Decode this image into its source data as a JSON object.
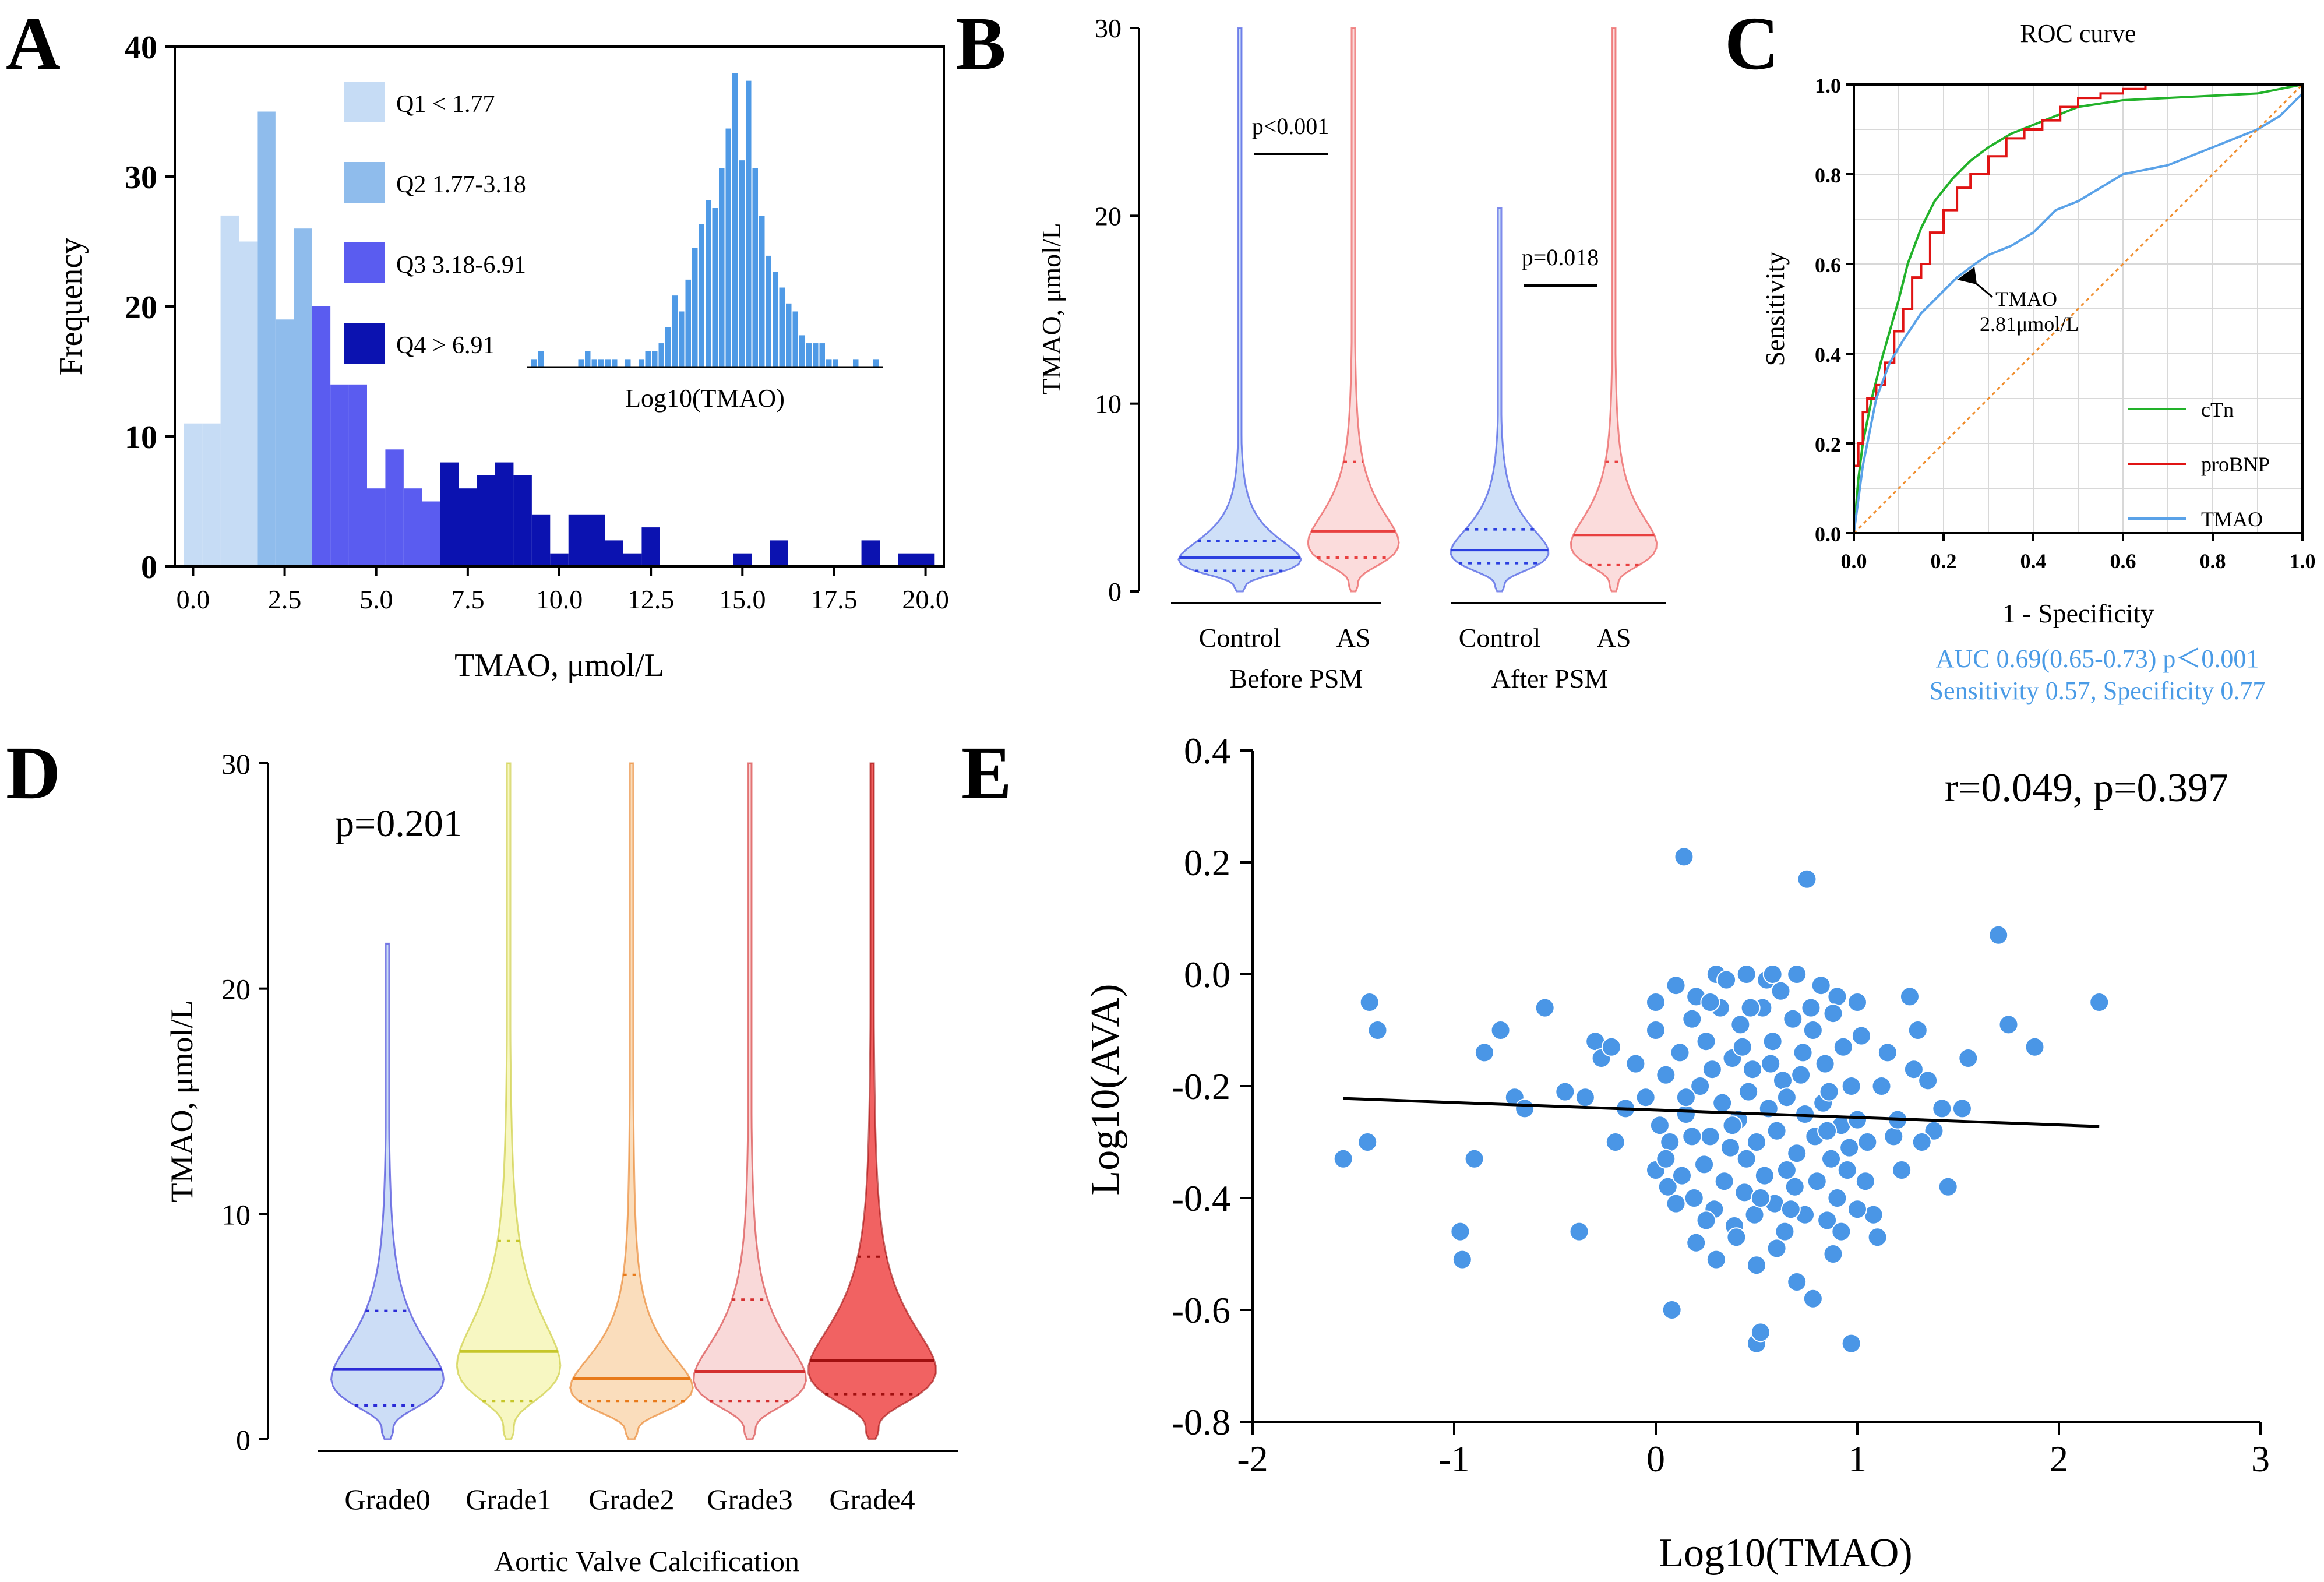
{
  "colors": {
    "q1": "#c6dcf5",
    "q2": "#8fbcec",
    "q3": "#5a5cf0",
    "q4": "#0b12b0",
    "inset": "#4f9ae6",
    "ctn": "#22b22a",
    "probnp": "#e01414",
    "tmao": "#5aa2e8",
    "blue_text": "#4a9be6",
    "scatter": "#4a96e6"
  },
  "panels": {
    "a": "A",
    "b": "B",
    "c": "C",
    "d": "D",
    "e": "E"
  },
  "chart_data": [
    {
      "id": "A",
      "type": "bar",
      "title": "",
      "xlabel": "TMAO, μmol/L",
      "ylabel": "Frequency",
      "xlim": [
        -0.5,
        20.5
      ],
      "ylim": [
        0,
        40
      ],
      "xticks": [
        "0.0",
        "2.5",
        "5.0",
        "7.5",
        "10.0",
        "12.5",
        "15.0",
        "17.5",
        "20.0"
      ],
      "yticks": [
        "0",
        "10",
        "20",
        "30",
        "40"
      ],
      "bin_width": 0.5,
      "bins": [
        {
          "x": 0.0,
          "v": 11,
          "q": 1
        },
        {
          "x": 0.5,
          "v": 11,
          "q": 1
        },
        {
          "x": 1.0,
          "v": 27,
          "q": 1
        },
        {
          "x": 1.5,
          "v": 25,
          "q": 1
        },
        {
          "x": 2.0,
          "v": 35,
          "q": 2
        },
        {
          "x": 2.5,
          "v": 19,
          "q": 2
        },
        {
          "x": 3.0,
          "v": 26,
          "q": 2
        },
        {
          "x": 3.5,
          "v": 20,
          "q": 3
        },
        {
          "x": 4.0,
          "v": 14,
          "q": 3
        },
        {
          "x": 4.5,
          "v": 14,
          "q": 3
        },
        {
          "x": 5.0,
          "v": 6,
          "q": 3
        },
        {
          "x": 5.5,
          "v": 9,
          "q": 3
        },
        {
          "x": 6.0,
          "v": 6,
          "q": 3
        },
        {
          "x": 6.5,
          "v": 5,
          "q": 3
        },
        {
          "x": 7.0,
          "v": 8,
          "q": 4
        },
        {
          "x": 7.5,
          "v": 6,
          "q": 4
        },
        {
          "x": 8.0,
          "v": 7,
          "q": 4
        },
        {
          "x": 8.5,
          "v": 8,
          "q": 4
        },
        {
          "x": 9.0,
          "v": 7,
          "q": 4
        },
        {
          "x": 9.5,
          "v": 4,
          "q": 4
        },
        {
          "x": 10.0,
          "v": 1,
          "q": 4
        },
        {
          "x": 10.5,
          "v": 4,
          "q": 4
        },
        {
          "x": 11.0,
          "v": 4,
          "q": 4
        },
        {
          "x": 11.5,
          "v": 2,
          "q": 4
        },
        {
          "x": 12.0,
          "v": 1,
          "q": 4
        },
        {
          "x": 12.5,
          "v": 3,
          "q": 4
        },
        {
          "x": 15.0,
          "v": 1,
          "q": 4
        },
        {
          "x": 16.0,
          "v": 2,
          "q": 4
        },
        {
          "x": 18.5,
          "v": 2,
          "q": 4
        },
        {
          "x": 19.5,
          "v": 1,
          "q": 4
        },
        {
          "x": 20.0,
          "v": 1,
          "q": 4
        }
      ],
      "legend": [
        {
          "label": "Q1   < 1.77",
          "q": 1
        },
        {
          "label": "Q2 1.77-3.18",
          "q": 2
        },
        {
          "label": "Q3 3.18-6.91",
          "q": 3
        },
        {
          "label": "Q4   > 6.91",
          "q": 4
        }
      ],
      "inset": {
        "xlabel": "Log10(TMAO)",
        "values": [
          1,
          2,
          0,
          0,
          0,
          0,
          0,
          1,
          2,
          1,
          1,
          1,
          1,
          0,
          1,
          0,
          1,
          2,
          2,
          3,
          5,
          9,
          7,
          11,
          15,
          18,
          21,
          20,
          25,
          30,
          37,
          26,
          36,
          25,
          19,
          14,
          12,
          10,
          8,
          7,
          4,
          3,
          3,
          3,
          1,
          1,
          0,
          0,
          1,
          0,
          0,
          1
        ]
      }
    },
    {
      "id": "B",
      "type": "violin",
      "ylabel": "TMAO, μmol/L",
      "ylim": [
        0,
        30
      ],
      "yticks": [
        "0",
        "10",
        "20",
        "30"
      ],
      "groups": [
        {
          "label": "Control",
          "median": 1.8,
          "q1": 1.1,
          "q3": 2.7,
          "max": 30,
          "mode": 1.6,
          "width": 0.75,
          "color": "blue"
        },
        {
          "label": "AS",
          "median": 3.2,
          "q1": 1.8,
          "q3": 6.9,
          "max": 30,
          "mode": 2.5,
          "width": 0.55,
          "color": "red"
        },
        {
          "label": "Control",
          "median": 2.2,
          "q1": 1.5,
          "q3": 3.3,
          "max": 20.4,
          "mode": 2.0,
          "width": 0.6,
          "color": "blue"
        },
        {
          "label": "AS",
          "median": 3.0,
          "q1": 1.4,
          "q3": 6.9,
          "max": 30,
          "mode": 2.4,
          "width": 0.52,
          "color": "red"
        }
      ],
      "group_labels": [
        "Before PSM",
        "After PSM"
      ],
      "annotations": [
        "p<0.001",
        "p=0.018"
      ]
    },
    {
      "id": "C",
      "type": "line",
      "title": "ROC curve",
      "xlabel": "1 - Specificity",
      "ylabel": "Sensitivity",
      "xlim": [
        0,
        1
      ],
      "ylim": [
        0,
        1
      ],
      "xticks": [
        "0.0",
        "0.2",
        "0.4",
        "0.6",
        "0.8",
        "1.0"
      ],
      "yticks": [
        "0.0",
        "0.2",
        "0.4",
        "0.6",
        "0.8",
        "1.0"
      ],
      "series": [
        {
          "name": "cTn",
          "color": "ctn",
          "x": [
            0,
            0.01,
            0.02,
            0.04,
            0.06,
            0.08,
            0.1,
            0.12,
            0.15,
            0.18,
            0.22,
            0.26,
            0.3,
            0.35,
            0.4,
            0.45,
            0.5,
            0.6,
            0.7,
            0.8,
            0.9,
            0.95,
            1.0
          ],
          "y": [
            0,
            0.12,
            0.2,
            0.3,
            0.38,
            0.45,
            0.52,
            0.6,
            0.68,
            0.74,
            0.79,
            0.83,
            0.86,
            0.89,
            0.91,
            0.93,
            0.95,
            0.965,
            0.97,
            0.975,
            0.98,
            0.99,
            1.0
          ]
        },
        {
          "name": "proBNP",
          "color": "probnp",
          "x": [
            0,
            0.0,
            0.01,
            0.02,
            0.03,
            0.05,
            0.07,
            0.09,
            0.11,
            0.13,
            0.15,
            0.17,
            0.2,
            0.23,
            0.26,
            0.3,
            0.34,
            0.38,
            0.42,
            0.46,
            0.5,
            0.55,
            0.6,
            0.65,
            0.7,
            1.0
          ],
          "y": [
            0,
            0.15,
            0.2,
            0.27,
            0.3,
            0.33,
            0.38,
            0.45,
            0.5,
            0.57,
            0.6,
            0.67,
            0.72,
            0.77,
            0.8,
            0.84,
            0.88,
            0.9,
            0.92,
            0.95,
            0.97,
            0.98,
            0.99,
            1.0,
            1.0,
            1.0
          ]
        },
        {
          "name": "TMAO",
          "color": "tmao",
          "x": [
            0,
            0.02,
            0.05,
            0.08,
            0.11,
            0.15,
            0.2,
            0.23,
            0.27,
            0.3,
            0.35,
            0.4,
            0.45,
            0.5,
            0.55,
            0.6,
            0.65,
            0.7,
            0.75,
            0.8,
            0.85,
            0.9,
            0.95,
            0.98,
            1.0
          ],
          "y": [
            0,
            0.15,
            0.3,
            0.38,
            0.43,
            0.49,
            0.54,
            0.57,
            0.6,
            0.62,
            0.64,
            0.67,
            0.72,
            0.74,
            0.77,
            0.8,
            0.81,
            0.82,
            0.84,
            0.86,
            0.88,
            0.9,
            0.93,
            0.96,
            0.98
          ]
        },
        {
          "name": "reference",
          "color": "diag",
          "x": [
            0,
            1
          ],
          "y": [
            0,
            1
          ]
        }
      ],
      "annotation": {
        "text1": "TMAO",
        "text2": "2.81μmol/L",
        "x": 0.23,
        "y": 0.565
      },
      "stats_line1": "AUC 0.69(0.65-0.73) p＜0.001",
      "stats_line2": "Sensitivity 0.57, Specificity 0.77"
    },
    {
      "id": "D",
      "type": "violin",
      "ylabel": "TMAO, μmol/L",
      "xlabel": "Aortic Valve Calcification",
      "ylim": [
        0,
        30
      ],
      "yticks": [
        "0",
        "10",
        "20",
        "30"
      ],
      "annotation": "p=0.201",
      "groups": [
        {
          "label": "Grade0",
          "median": 3.1,
          "q1": 1.5,
          "q3": 5.7,
          "max": 22,
          "mode": 2.6,
          "width": 0.6,
          "stroke": "#2b2bd6",
          "fill": "#b7cff2"
        },
        {
          "label": "Grade1",
          "median": 3.9,
          "q1": 1.7,
          "q3": 8.8,
          "max": 30,
          "mode": 3.2,
          "width": 0.55,
          "stroke": "#c6c62a",
          "fill": "#f4f4a8"
        },
        {
          "label": "Grade2",
          "median": 2.7,
          "q1": 1.7,
          "q3": 7.3,
          "max": 30,
          "mode": 2.2,
          "width": 0.65,
          "stroke": "#e87a1a",
          "fill": "#f8cf9f"
        },
        {
          "label": "Grade3",
          "median": 3.0,
          "q1": 1.7,
          "q3": 6.2,
          "max": 30,
          "mode": 2.6,
          "width": 0.6,
          "stroke": "#d43030",
          "fill": "#f6c9c9"
        },
        {
          "label": "Grade4",
          "median": 3.5,
          "q1": 2.0,
          "q3": 8.1,
          "max": 30,
          "mode": 3.0,
          "width": 0.68,
          "stroke": "#a01010",
          "fill": "#f05a5a"
        }
      ]
    },
    {
      "id": "E",
      "type": "scatter",
      "xlabel": "Log10(TMAO)",
      "ylabel": "Log10(AVA)",
      "xlim": [
        -2,
        3
      ],
      "ylim": [
        -0.8,
        0.4
      ],
      "xticks": [
        "-2",
        "-1",
        "0",
        "1",
        "2",
        "3"
      ],
      "yticks": [
        "-0.8",
        "-0.6",
        "-0.4",
        "-0.2",
        "0.0",
        "0.2",
        "0.4"
      ],
      "annotation": "r=0.049, p=0.397",
      "fit": {
        "x": [
          -1.55,
          2.2
        ],
        "y": [
          -0.222,
          -0.272
        ]
      },
      "points": [
        [
          -1.55,
          -0.33
        ],
        [
          -1.43,
          -0.3
        ],
        [
          -1.42,
          -0.05
        ],
        [
          -1.38,
          -0.1
        ],
        [
          -0.97,
          -0.46
        ],
        [
          -0.96,
          -0.51
        ],
        [
          -0.9,
          -0.33
        ],
        [
          -0.85,
          -0.14
        ],
        [
          -0.77,
          -0.1
        ],
        [
          -0.7,
          -0.22
        ],
        [
          -0.65,
          -0.24
        ],
        [
          -0.55,
          -0.06
        ],
        [
          -0.45,
          -0.21
        ],
        [
          -0.38,
          -0.46
        ],
        [
          -0.35,
          -0.22
        ],
        [
          -0.3,
          -0.12
        ],
        [
          -0.27,
          -0.15
        ],
        [
          -0.22,
          -0.13
        ],
        [
          -0.15,
          -0.24
        ],
        [
          0.08,
          -0.6
        ],
        [
          0.14,
          0.21
        ],
        [
          0.75,
          0.17
        ],
        [
          0.97,
          -0.66
        ],
        [
          0.5,
          -0.66
        ],
        [
          0.52,
          -0.64
        ],
        [
          1.7,
          0.07
        ],
        [
          1.75,
          -0.09
        ],
        [
          1.88,
          -0.13
        ],
        [
          2.2,
          -0.05
        ],
        [
          1.55,
          -0.15
        ],
        [
          1.52,
          -0.24
        ],
        [
          1.45,
          -0.38
        ],
        [
          1.42,
          -0.24
        ],
        [
          1.38,
          -0.28
        ],
        [
          1.32,
          -0.3
        ],
        [
          1.28,
          -0.17
        ],
        [
          1.26,
          -0.04
        ],
        [
          1.3,
          -0.1
        ],
        [
          1.22,
          -0.35
        ],
        [
          1.18,
          -0.29
        ],
        [
          1.12,
          -0.2
        ],
        [
          1.08,
          -0.43
        ],
        [
          1.04,
          -0.37
        ],
        [
          0.1,
          -0.02
        ],
        [
          0.2,
          -0.04
        ],
        [
          0.3,
          0.0
        ],
        [
          0.45,
          0.0
        ],
        [
          0.55,
          -0.01
        ],
        [
          0.7,
          0.0
        ],
        [
          0.82,
          -0.02
        ],
        [
          0.9,
          -0.04
        ],
        [
          1.0,
          -0.05
        ],
        [
          0.0,
          -0.1
        ],
        [
          0.05,
          -0.18
        ],
        [
          0.12,
          -0.14
        ],
        [
          0.18,
          -0.08
        ],
        [
          0.25,
          -0.12
        ],
        [
          0.32,
          -0.06
        ],
        [
          0.38,
          -0.15
        ],
        [
          0.42,
          -0.09
        ],
        [
          0.48,
          -0.17
        ],
        [
          0.53,
          -0.06
        ],
        [
          0.58,
          -0.12
        ],
        [
          0.63,
          -0.19
        ],
        [
          0.68,
          -0.08
        ],
        [
          0.73,
          -0.14
        ],
        [
          0.78,
          -0.1
        ],
        [
          0.84,
          -0.16
        ],
        [
          0.88,
          -0.07
        ],
        [
          0.93,
          -0.13
        ],
        [
          0.97,
          -0.2
        ],
        [
          1.02,
          -0.11
        ],
        [
          -0.05,
          -0.22
        ],
        [
          0.02,
          -0.27
        ],
        [
          0.07,
          -0.3
        ],
        [
          0.15,
          -0.25
        ],
        [
          0.22,
          -0.2
        ],
        [
          0.27,
          -0.29
        ],
        [
          0.33,
          -0.23
        ],
        [
          0.37,
          -0.31
        ],
        [
          0.41,
          -0.26
        ],
        [
          0.46,
          -0.21
        ],
        [
          0.5,
          -0.3
        ],
        [
          0.56,
          -0.24
        ],
        [
          0.6,
          -0.28
        ],
        [
          0.65,
          -0.22
        ],
        [
          0.7,
          -0.32
        ],
        [
          0.74,
          -0.25
        ],
        [
          0.79,
          -0.29
        ],
        [
          0.83,
          -0.23
        ],
        [
          0.87,
          -0.33
        ],
        [
          0.92,
          -0.27
        ],
        [
          0.96,
          -0.31
        ],
        [
          1.0,
          -0.26
        ],
        [
          1.05,
          -0.3
        ],
        [
          0.0,
          -0.35
        ],
        [
          0.06,
          -0.38
        ],
        [
          0.13,
          -0.36
        ],
        [
          0.19,
          -0.4
        ],
        [
          0.24,
          -0.34
        ],
        [
          0.29,
          -0.42
        ],
        [
          0.34,
          -0.37
        ],
        [
          0.39,
          -0.45
        ],
        [
          0.44,
          -0.39
        ],
        [
          0.49,
          -0.43
        ],
        [
          0.54,
          -0.36
        ],
        [
          0.59,
          -0.41
        ],
        [
          0.64,
          -0.46
        ],
        [
          0.69,
          -0.38
        ],
        [
          0.74,
          -0.43
        ],
        [
          0.8,
          -0.37
        ],
        [
          0.85,
          -0.44
        ],
        [
          0.9,
          -0.4
        ],
        [
          0.95,
          -0.35
        ],
        [
          1.0,
          -0.42
        ],
        [
          0.2,
          -0.48
        ],
        [
          0.3,
          -0.51
        ],
        [
          0.4,
          -0.47
        ],
        [
          0.5,
          -0.52
        ],
        [
          0.6,
          -0.49
        ],
        [
          0.7,
          -0.55
        ],
        [
          0.78,
          -0.58
        ],
        [
          0.88,
          -0.5
        ],
        [
          0.35,
          -0.01
        ],
        [
          0.62,
          -0.03
        ],
        [
          -0.1,
          -0.16
        ],
        [
          -0.2,
          -0.3
        ],
        [
          0.0,
          -0.05
        ],
        [
          0.15,
          -0.22
        ],
        [
          0.28,
          -0.17
        ],
        [
          0.43,
          -0.13
        ],
        [
          0.57,
          -0.16
        ],
        [
          0.72,
          -0.18
        ],
        [
          0.86,
          -0.21
        ],
        [
          1.15,
          -0.14
        ],
        [
          1.2,
          -0.26
        ],
        [
          1.35,
          -0.19
        ],
        [
          0.25,
          -0.44
        ],
        [
          0.45,
          -0.33
        ],
        [
          0.65,
          -0.35
        ],
        [
          0.85,
          -0.28
        ],
        [
          0.05,
          -0.33
        ],
        [
          0.18,
          -0.29
        ],
        [
          0.38,
          -0.27
        ],
        [
          0.52,
          -0.4
        ],
        [
          0.67,
          -0.42
        ],
        [
          0.92,
          -0.46
        ],
        [
          1.1,
          -0.47
        ],
        [
          0.1,
          -0.41
        ],
        [
          0.27,
          -0.05
        ],
        [
          0.47,
          -0.06
        ],
        [
          0.77,
          -0.06
        ],
        [
          0.58,
          0.0
        ]
      ]
    }
  ]
}
